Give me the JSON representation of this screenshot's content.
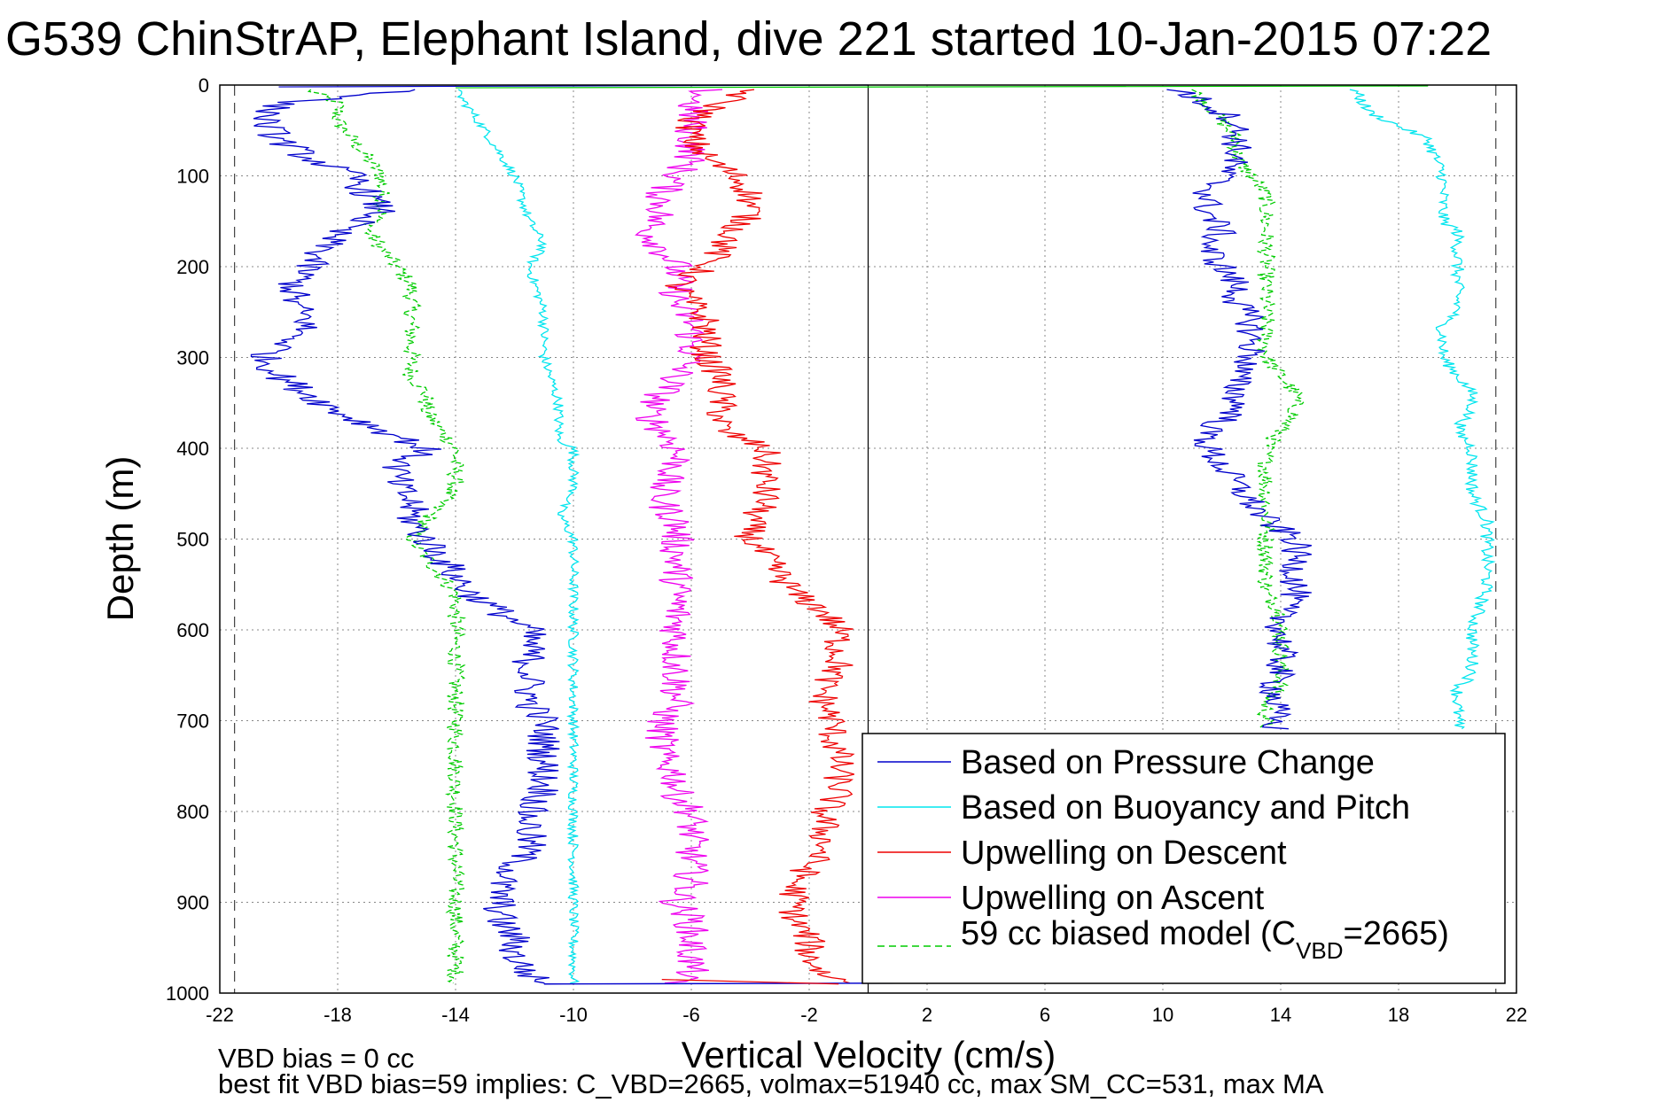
{
  "title": "G539 ChinStrAP, Elephant Island, dive 221 started 10-Jan-2015 07:22",
  "footer": {
    "line1": "VBD bias = 0 cc",
    "line2": "best fit VBD bias=59 implies: C_VBD=2665, volmax=51940 cc, max SM_CC=531, max MA"
  },
  "legend": {
    "placement": "bottom-right",
    "model_prefix": "59 cc biased model (C",
    "model_sub": "VBD",
    "model_suffix": "=2665)"
  },
  "colors": {
    "pressure": "#0000cc",
    "buoyancy": "#00e5ee",
    "descent": "#ee0000",
    "ascent": "#ee00ee",
    "model": "#00cc00",
    "grid": "#888888",
    "zero_line": "#000000",
    "limit_line": "#444444"
  },
  "chart_data": {
    "type": "line",
    "title": "G539 ChinStrAP, Elephant Island, dive 221 started 10-Jan-2015 07:22",
    "xlabel": "Vertical Velocity (cm/s)",
    "ylabel": "Depth (m)",
    "xlim": [
      -22,
      22
    ],
    "ylim": [
      0,
      1000
    ],
    "y_reversed": true,
    "grid": true,
    "xticks": [
      "-22",
      "-18",
      "-14",
      "-10",
      "-6",
      "-2",
      "2",
      "6",
      "10",
      "14",
      "18",
      "22"
    ],
    "yticks": [
      "0",
      "100",
      "200",
      "300",
      "400",
      "500",
      "600",
      "700",
      "800",
      "900",
      "1000"
    ],
    "reference_lines": {
      "zero_x": 0,
      "limits_x": [
        -21.5,
        21.3
      ]
    },
    "series": [
      {
        "name": "Based on Pressure Change",
        "color": "#0000cc",
        "descent": {
          "depth": [
            5,
            20,
            40,
            60,
            80,
            100,
            120,
            140,
            160,
            180,
            200,
            220,
            240,
            260,
            280,
            300,
            320,
            340,
            360,
            380,
            400,
            420,
            440,
            460,
            480,
            500,
            520,
            540,
            560,
            580,
            600,
            620,
            640,
            660,
            680,
            700,
            720,
            740,
            760,
            780,
            800,
            820,
            840,
            860,
            880,
            900,
            920,
            940,
            960,
            980,
            990
          ],
          "v": [
            -15,
            -20,
            -20.5,
            -20,
            -19,
            -17.5,
            -17,
            -16.5,
            -18,
            -18.5,
            -19,
            -19.5,
            -19.5,
            -19,
            -19.5,
            -20.5,
            -20,
            -19,
            -18,
            -16.5,
            -15,
            -16,
            -16,
            -15.5,
            -15.5,
            -15,
            -14.5,
            -14,
            -13.5,
            -12.5,
            -11.5,
            -11.5,
            -11.5,
            -11.5,
            -11.5,
            -11,
            -11,
            -11,
            -11,
            -11,
            -11.5,
            -11.5,
            -11.5,
            -12,
            -12.5,
            -12.5,
            -12.5,
            -12,
            -12,
            -11.5,
            -11
          ]
        },
        "ascent": {
          "depth": [
            5,
            20,
            40,
            60,
            80,
            100,
            120,
            140,
            160,
            180,
            200,
            220,
            240,
            260,
            280,
            300,
            320,
            340,
            360,
            380,
            400,
            420,
            440,
            460,
            480,
            500,
            520,
            540,
            560,
            580,
            600,
            620,
            640,
            660,
            680,
            700,
            710
          ],
          "v": [
            10.5,
            11.5,
            12.5,
            12.5,
            12.5,
            12,
            11.5,
            11.5,
            12,
            11.5,
            12,
            12.5,
            12.5,
            13,
            13,
            13,
            12.5,
            12.5,
            12.5,
            11.5,
            11.5,
            12,
            12.5,
            13,
            13.5,
            14.5,
            14.5,
            14.5,
            14.5,
            14,
            14,
            14,
            14,
            13.8,
            13.8,
            13.8,
            13.8
          ]
        }
      },
      {
        "name": "Based on Buoyancy and Pitch",
        "color": "#00e5ee",
        "descent": {
          "depth": [
            5,
            50,
            100,
            150,
            175,
            200,
            250,
            300,
            350,
            390,
            400,
            450,
            470,
            500,
            550,
            600,
            650,
            700,
            750,
            800,
            850,
            900,
            950,
            990
          ],
          "v": [
            -14,
            -13,
            -12,
            -11.5,
            -11,
            -11.5,
            -11,
            -11,
            -10.5,
            -10.5,
            -10,
            -10,
            -10.5,
            -10,
            -10,
            -10,
            -10,
            -10,
            -10,
            -10,
            -10,
            -10,
            -10,
            -10
          ]
        },
        "ascent": {
          "depth": [
            5,
            30,
            60,
            100,
            130,
            150,
            160,
            180,
            200,
            250,
            260,
            300,
            340,
            355,
            380,
            400,
            420,
            450,
            480,
            500,
            550,
            600,
            650,
            665,
            700,
            710
          ],
          "v": [
            16.5,
            17,
            19,
            19.5,
            19.5,
            19.5,
            20,
            20,
            20,
            20,
            19.5,
            19.5,
            20.5,
            20.5,
            20,
            20.5,
            20.5,
            20.5,
            21,
            21,
            21,
            20.5,
            20.5,
            20,
            20,
            20
          ]
        }
      },
      {
        "name": "Upwelling on Descent",
        "color": "#ee0000",
        "depth": [
          5,
          20,
          40,
          60,
          80,
          100,
          120,
          140,
          160,
          180,
          200,
          220,
          240,
          260,
          280,
          300,
          320,
          340,
          360,
          380,
          400,
          420,
          440,
          460,
          480,
          500,
          520,
          540,
          560,
          580,
          600,
          620,
          640,
          660,
          680,
          700,
          720,
          740,
          760,
          780,
          800,
          820,
          840,
          860,
          880,
          900,
          920,
          940,
          960,
          980,
          990
        ],
        "v": [
          -4,
          -5,
          -6,
          -6,
          -5.5,
          -4.5,
          -4,
          -4,
          -4.5,
          -5,
          -5.5,
          -6.5,
          -6,
          -5.5,
          -5.5,
          -5.5,
          -5,
          -5,
          -5,
          -5,
          -3.5,
          -3.5,
          -3.5,
          -3.5,
          -4,
          -4,
          -3.5,
          -3,
          -2.5,
          -1.5,
          -1,
          -1,
          -1,
          -1.5,
          -1.5,
          -1.2,
          -1.2,
          -1,
          -1,
          -1,
          -1.5,
          -1.5,
          -1.5,
          -2,
          -2.5,
          -2.5,
          -2.5,
          -2,
          -2,
          -1.5,
          -0.5
        ]
      },
      {
        "name": "Upwelling on Ascent",
        "color": "#ee00ee",
        "depth": [
          5,
          20,
          40,
          60,
          80,
          100,
          120,
          140,
          160,
          180,
          200,
          220,
          240,
          260,
          280,
          300,
          320,
          340,
          360,
          380,
          400,
          420,
          440,
          460,
          480,
          500,
          520,
          540,
          560,
          580,
          600,
          620,
          640,
          660,
          680,
          700,
          720,
          740,
          760,
          780,
          800,
          820,
          840,
          860,
          880,
          900,
          920,
          940,
          960,
          980,
          990
        ],
        "v": [
          -5.5,
          -6,
          -6,
          -6,
          -6,
          -6.5,
          -7,
          -7,
          -7.5,
          -7,
          -6.5,
          -6.5,
          -6.5,
          -6,
          -6,
          -6,
          -6.5,
          -7,
          -7.5,
          -7,
          -6.5,
          -6.5,
          -7,
          -7,
          -6.5,
          -6.5,
          -6.5,
          -6.5,
          -6.5,
          -6.5,
          -6.5,
          -6.5,
          -6.5,
          -6.5,
          -6.5,
          -7,
          -7,
          -7,
          -6.5,
          -6.5,
          -6,
          -6,
          -6,
          -6,
          -6,
          -6.5,
          -6,
          -6,
          -6,
          -6,
          -7
        ]
      },
      {
        "name": "59 cc biased model (CVBD=2665)",
        "color": "#00cc00",
        "descent": {
          "depth": [
            5,
            20,
            40,
            60,
            80,
            100,
            120,
            140,
            160,
            180,
            200,
            220,
            240,
            260,
            280,
            300,
            320,
            340,
            360,
            380,
            400,
            420,
            440,
            460,
            480,
            500,
            520,
            540,
            560,
            580,
            600,
            620,
            640,
            660,
            680,
            700,
            720,
            740,
            760,
            780,
            800,
            820,
            840,
            860,
            880,
            900,
            920,
            940,
            960,
            980,
            990
          ],
          "v": [
            -19,
            -18,
            -18,
            -17.5,
            -17,
            -16.5,
            -16.5,
            -16.5,
            -17,
            -16.5,
            -16,
            -15.5,
            -15.5,
            -15.5,
            -15.5,
            -15.5,
            -15.5,
            -15,
            -15,
            -14.5,
            -14,
            -14,
            -14,
            -14.5,
            -15,
            -15.5,
            -15,
            -14.5,
            -14,
            -14,
            -14,
            -14,
            -14,
            -14,
            -14,
            -14,
            -14,
            -14,
            -14,
            -14,
            -14,
            -14,
            -14,
            -14,
            -14,
            -14,
            -14,
            -14,
            -14,
            -14,
            -14
          ]
        },
        "ascent": {
          "depth": [
            5,
            20,
            40,
            60,
            80,
            100,
            120,
            140,
            160,
            180,
            200,
            220,
            240,
            260,
            280,
            300,
            320,
            340,
            360,
            380,
            400,
            420,
            440,
            460,
            480,
            500,
            520,
            540,
            560,
            580,
            600,
            620,
            640,
            660,
            680,
            700,
            710
          ],
          "v": [
            11,
            11.5,
            12,
            12.5,
            12.5,
            13,
            13.5,
            13.5,
            13.5,
            13.5,
            13.5,
            13.5,
            13.5,
            13.5,
            13.5,
            13.5,
            14,
            14.5,
            14.5,
            14,
            13.5,
            13.5,
            13.5,
            13.5,
            13.5,
            13.5,
            13.5,
            13.5,
            13.5,
            14,
            14,
            14,
            14,
            14,
            13.5,
            13.5,
            13.5
          ]
        }
      }
    ]
  }
}
